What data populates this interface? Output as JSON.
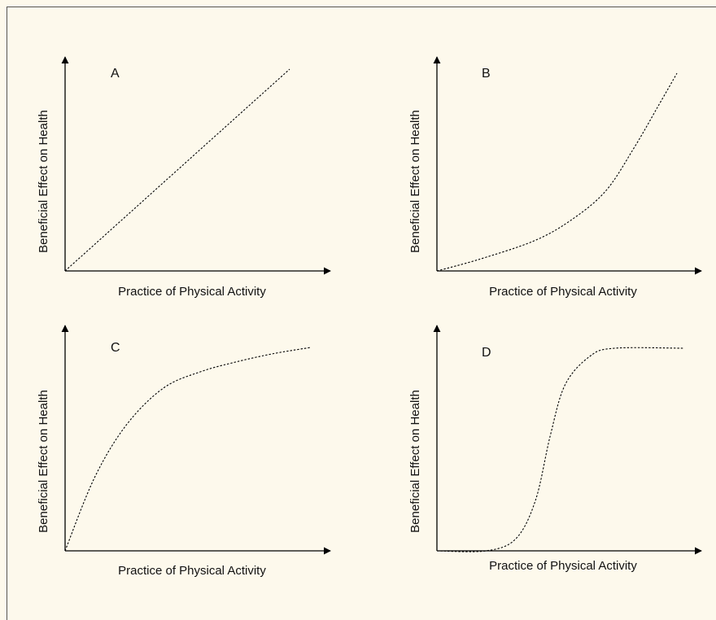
{
  "panels": [
    {
      "letter": "A",
      "xlabel": "Practice of Physical Activity",
      "ylabel": "Beneficial Effect on Health",
      "curve": [
        [
          0,
          0
        ],
        [
          1,
          1
        ]
      ]
    },
    {
      "letter": "B",
      "xlabel": "Practice of Physical Activity",
      "ylabel": "Beneficial Effect on Health",
      "curve": [
        [
          0,
          0
        ],
        [
          0.18,
          0.06
        ],
        [
          0.4,
          0.15
        ],
        [
          0.55,
          0.25
        ],
        [
          0.7,
          0.4
        ],
        [
          0.82,
          0.62
        ],
        [
          0.92,
          0.83
        ],
        [
          1,
          1
        ]
      ]
    },
    {
      "letter": "C",
      "xlabel": "Practice of Physical Activity",
      "ylabel": "Beneficial Effect on Health",
      "curve": [
        [
          0,
          0
        ],
        [
          0.12,
          0.36
        ],
        [
          0.25,
          0.62
        ],
        [
          0.4,
          0.8
        ],
        [
          0.55,
          0.88
        ],
        [
          0.7,
          0.93
        ],
        [
          0.85,
          0.97
        ],
        [
          1,
          1
        ]
      ]
    },
    {
      "letter": "D",
      "xlabel": "Practice of Physical Activity",
      "ylabel": "Beneficial Effect on Health",
      "curve": [
        [
          0,
          0
        ],
        [
          0.2,
          0.0
        ],
        [
          0.32,
          0.06
        ],
        [
          0.4,
          0.25
        ],
        [
          0.46,
          0.57
        ],
        [
          0.52,
          0.82
        ],
        [
          0.62,
          0.96
        ],
        [
          0.72,
          1
        ],
        [
          1,
          1
        ]
      ]
    }
  ]
}
